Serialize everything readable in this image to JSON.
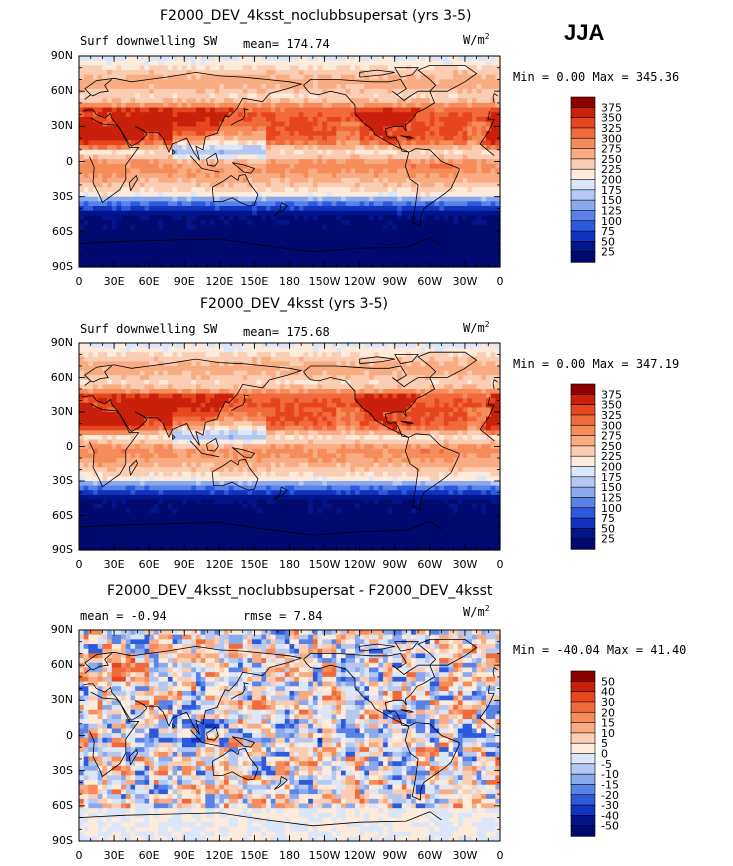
{
  "season": "JJA",
  "panels": [
    {
      "title": "F2000_DEV_4ksst_noclubbsupersat (yrs 3-5)",
      "left_label": "Surf downwelling SW",
      "mean_text": "mean= 174.74",
      "rmse_text": "",
      "units": "W/m",
      "units_sup": "2",
      "minmax": "Min =   0.00 Max = 345.36",
      "cb_labels": [
        "375",
        "350",
        "325",
        "300",
        "275",
        "250",
        "225",
        "200",
        "175",
        "150",
        "125",
        "100",
        "75",
        "50",
        "25"
      ],
      "cb_colors": [
        "#8c0000",
        "#c8200a",
        "#e6461e",
        "#f06a3c",
        "#f58c5a",
        "#f8ac84",
        "#fbcdb2",
        "#fdebdc",
        "#dbe6f8",
        "#b4c8f2",
        "#8aa8ee",
        "#5a82e6",
        "#2d5adc",
        "#1232c0",
        "#00148c",
        "#000a6e"
      ],
      "mean": 174.74,
      "min": 0.0,
      "max": 345.36,
      "field": "abs"
    },
    {
      "title": "F2000_DEV_4ksst (yrs 3-5)",
      "left_label": "Surf downwelling SW",
      "mean_text": "mean= 175.68",
      "rmse_text": "",
      "units": "W/m",
      "units_sup": "2",
      "minmax": "Min =   0.00 Max = 347.19",
      "cb_labels": [
        "375",
        "350",
        "325",
        "300",
        "275",
        "250",
        "225",
        "200",
        "175",
        "150",
        "125",
        "100",
        "75",
        "50",
        "25"
      ],
      "cb_colors": [
        "#8c0000",
        "#c8200a",
        "#e6461e",
        "#f06a3c",
        "#f58c5a",
        "#f8ac84",
        "#fbcdb2",
        "#fdebdc",
        "#dbe6f8",
        "#b4c8f2",
        "#8aa8ee",
        "#5a82e6",
        "#2d5adc",
        "#1232c0",
        "#00148c",
        "#000a6e"
      ],
      "mean": 175.68,
      "min": 0.0,
      "max": 347.19,
      "field": "abs"
    },
    {
      "title": "F2000_DEV_4ksst_noclubbsupersat - F2000_DEV_4ksst",
      "left_label": "mean =   -0.94",
      "mean_text": "rmse =    7.84",
      "rmse_text": "",
      "units": "W/m",
      "units_sup": "2",
      "minmax": "Min = -40.04 Max =  41.40",
      "cb_labels": [
        "50",
        "40",
        "30",
        "20",
        "15",
        "10",
        "5",
        "0",
        "-5",
        "-10",
        "-15",
        "-20",
        "-30",
        "-40",
        "-50"
      ],
      "cb_colors": [
        "#8c0000",
        "#c8200a",
        "#e6461e",
        "#f06a3c",
        "#f58c5a",
        "#f8ac84",
        "#fbcdb2",
        "#fdebdc",
        "#dbe6f8",
        "#b4c8f2",
        "#8aa8ee",
        "#5a82e6",
        "#2d5adc",
        "#1232c0",
        "#00148c",
        "#000a6e"
      ],
      "mean": -0.94,
      "min": -40.04,
      "max": 41.4,
      "field": "diff"
    }
  ],
  "lat_ticks": [
    "90N",
    "60N",
    "30N",
    "0",
    "30S",
    "60S",
    "90S"
  ],
  "lon_ticks": [
    "0",
    "30E",
    "60E",
    "90E",
    "120E",
    "150E",
    "180",
    "150W",
    "120W",
    "90W",
    "60W",
    "30W",
    "0"
  ]
}
